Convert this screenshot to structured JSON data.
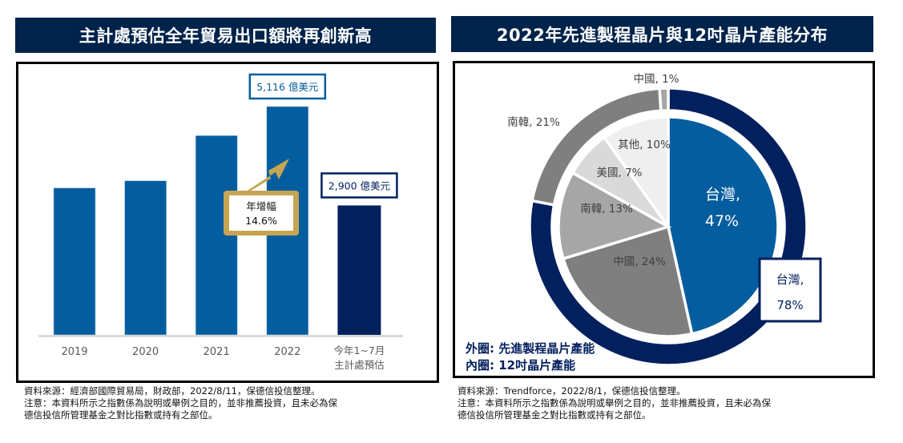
{
  "left_panel": {
    "title": "主計處預估全年貿易出口額將再創新高",
    "source_note": "資料來源：經濟部國際貿易局，財政部，2022/8/11，保德信投信整理。",
    "disclaimer_line1": "注意：本資料所示之指數係為說明或舉例之目的，並非推薦投資，且未必為保",
    "disclaimer_line2": "德信投信所管理基金之對比指數或持有之部位。"
  },
  "right_panel": {
    "title": "2022年先進製程晶片與12吋晶片產能分布",
    "legend_outer": "外圈: 先進製程晶片產能",
    "legend_inner": "內圈: 12吋晶片產能",
    "source_note": "資料來源：Trendforce，2022/8/1，保德信投信整理。",
    "disclaimer_line1": "注意：本資料所示之指數係為說明或舉例之目的，並非推薦投資，且未必為保",
    "disclaimer_line2": "德信投信所管理基金之對比指數或持有之部位。"
  },
  "colors": {
    "header_bg": "#00234b",
    "bar_blue": "#045d9e",
    "bar_navy": "#03205e",
    "gold": "#c6a552",
    "outer_taiwan": "#03205e",
    "outer_korea": "#7f7f7f",
    "outer_china": "#a6a6a6",
    "inner_taiwan": "#045d9e",
    "inner_china": "#7f7f7f",
    "inner_korea": "#a6a6a6",
    "inner_usa": "#d9d9d9",
    "inner_other": "#efefef"
  },
  "chart_data": [
    {
      "type": "bar",
      "title": "主計處預估全年貿易出口額將再創新高",
      "categories": [
        "2019",
        "2020",
        "2021",
        "2022",
        "今年1~7月\n主計處預估"
      ],
      "category_lines": [
        [
          "2019"
        ],
        [
          "2020"
        ],
        [
          "2021"
        ],
        [
          "2022"
        ],
        [
          "今年1~7月",
          "主計處預估"
        ]
      ],
      "values": [
        3291,
        3452,
        4464,
        5116,
        2900
      ],
      "unit": "億美元",
      "xlabel": "",
      "ylabel": "",
      "ylim": [
        0,
        5116
      ],
      "grid": false,
      "data_labels": [
        {
          "category_index": 3,
          "text": "5,116 億美元"
        },
        {
          "category_index": 4,
          "text": "2,900 億美元"
        }
      ],
      "annotation": {
        "line1": "年增幅",
        "line2": "14.6%",
        "from_index": 2,
        "to_index": 3
      }
    },
    {
      "type": "pie",
      "title": "2022年先進製程晶片與12吋晶片產能分布",
      "rings": [
        {
          "name": "外圈: 先進製程晶片產能",
          "slices": [
            {
              "label": "台灣",
              "value": 78,
              "text": "台灣,",
              "pct": "78%"
            },
            {
              "label": "南韓",
              "value": 21,
              "text": "南韓, 21%"
            },
            {
              "label": "中國",
              "value": 1,
              "text": "中國, 1%"
            }
          ]
        },
        {
          "name": "內圈: 12吋晶片產能",
          "slices": [
            {
              "label": "台灣",
              "value": 47,
              "text": "台灣,",
              "pct": "47%"
            },
            {
              "label": "中國",
              "value": 24,
              "text": "中國, 24%"
            },
            {
              "label": "南韓",
              "value": 13,
              "text": "南韓, 13%"
            },
            {
              "label": "美國",
              "value": 7,
              "text": "美國, 7%"
            },
            {
              "label": "其他",
              "value": 10,
              "text": "其他, 10%"
            }
          ]
        }
      ],
      "start_angle": "12 o'clock",
      "direction": "clockwise"
    }
  ]
}
